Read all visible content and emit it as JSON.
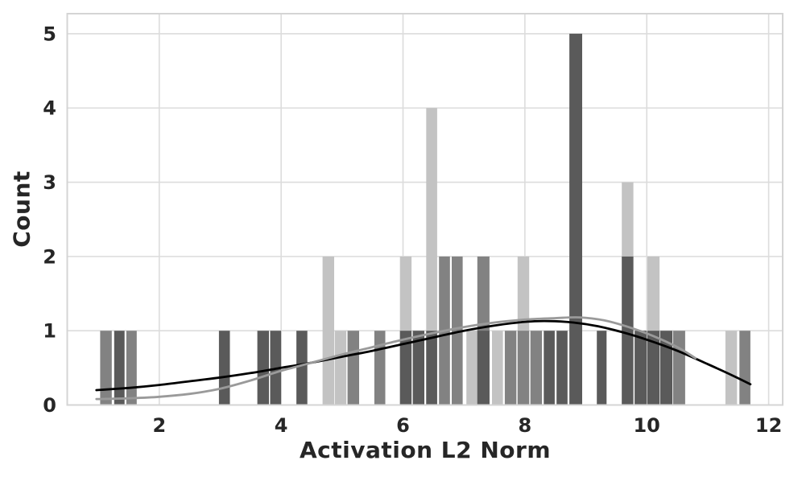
{
  "colors": {
    "background": "#ffffff",
    "grid": "#dcdcdc",
    "spine": "#d4d4d4",
    "tick_text": "#262626",
    "label_text": "#262626",
    "kde_black": "#000000",
    "kde_gray": "#9a9a9a",
    "bar_light": "#c3c3c3",
    "bar_medium": "#828282",
    "bar_dark": "#5a5a5a"
  },
  "chart_data": {
    "type": "bar",
    "subtype": "layered-histogram-with-kde",
    "title": "",
    "xlabel": "Activation L2 Norm",
    "ylabel": "Count",
    "xlim": [
      0.49,
      12.23
    ],
    "ylim": [
      0,
      5.27
    ],
    "x_ticks": [
      2,
      4,
      6,
      8,
      10,
      12
    ],
    "y_ticks": [
      0,
      1,
      2,
      3,
      4,
      5
    ],
    "grid": true,
    "legend": false,
    "shade_colors": {
      "light": "#c3c3c3",
      "medium": "#828282",
      "dark": "#5a5a5a"
    },
    "bars": [
      {
        "x1": 1.03,
        "x2": 1.22,
        "count": 1,
        "shade": "medium"
      },
      {
        "x1": 1.26,
        "x2": 1.43,
        "count": 1,
        "shade": "dark"
      },
      {
        "x1": 1.46,
        "x2": 1.63,
        "count": 1,
        "shade": "medium"
      },
      {
        "x1": 2.98,
        "x2": 3.16,
        "count": 1,
        "shade": "dark"
      },
      {
        "x1": 3.61,
        "x2": 3.8,
        "count": 1,
        "shade": "dark"
      },
      {
        "x1": 3.82,
        "x2": 4.0,
        "count": 1,
        "shade": "dark"
      },
      {
        "x1": 4.25,
        "x2": 4.43,
        "count": 1,
        "shade": "dark"
      },
      {
        "x1": 4.68,
        "x2": 4.87,
        "count": 2,
        "shade": "light"
      },
      {
        "x1": 4.88,
        "x2": 5.07,
        "count": 1,
        "shade": "light"
      },
      {
        "x1": 5.09,
        "x2": 5.28,
        "count": 1,
        "shade": "medium"
      },
      {
        "x1": 5.53,
        "x2": 5.71,
        "count": 1,
        "shade": "medium"
      },
      {
        "x1": 5.95,
        "x2": 6.14,
        "count": 2,
        "shade": "light"
      },
      {
        "x1": 5.95,
        "x2": 6.14,
        "count": 1,
        "shade": "dark"
      },
      {
        "x1": 6.16,
        "x2": 6.35,
        "count": 1,
        "shade": "dark"
      },
      {
        "x1": 6.38,
        "x2": 6.56,
        "count": 4,
        "shade": "light"
      },
      {
        "x1": 6.38,
        "x2": 6.56,
        "count": 1,
        "shade": "dark"
      },
      {
        "x1": 6.59,
        "x2": 6.77,
        "count": 2,
        "shade": "medium"
      },
      {
        "x1": 6.8,
        "x2": 6.98,
        "count": 2,
        "shade": "medium"
      },
      {
        "x1": 7.04,
        "x2": 7.22,
        "count": 1,
        "shade": "light"
      },
      {
        "x1": 7.22,
        "x2": 7.42,
        "count": 2,
        "shade": "medium"
      },
      {
        "x1": 7.22,
        "x2": 7.42,
        "count": 1,
        "shade": "dark"
      },
      {
        "x1": 7.46,
        "x2": 7.64,
        "count": 1,
        "shade": "light"
      },
      {
        "x1": 7.67,
        "x2": 7.86,
        "count": 1,
        "shade": "medium"
      },
      {
        "x1": 7.88,
        "x2": 8.07,
        "count": 2,
        "shade": "light"
      },
      {
        "x1": 7.88,
        "x2": 8.07,
        "count": 1,
        "shade": "medium"
      },
      {
        "x1": 8.09,
        "x2": 8.28,
        "count": 1,
        "shade": "medium"
      },
      {
        "x1": 8.31,
        "x2": 8.49,
        "count": 1,
        "shade": "dark"
      },
      {
        "x1": 8.52,
        "x2": 8.7,
        "count": 1,
        "shade": "dark"
      },
      {
        "x1": 8.73,
        "x2": 8.94,
        "count": 5,
        "shade": "dark"
      },
      {
        "x1": 9.18,
        "x2": 9.34,
        "count": 1,
        "shade": "dark"
      },
      {
        "x1": 9.59,
        "x2": 9.78,
        "count": 3,
        "shade": "light"
      },
      {
        "x1": 9.59,
        "x2": 9.78,
        "count": 2,
        "shade": "dark"
      },
      {
        "x1": 9.8,
        "x2": 10.0,
        "count": 1,
        "shade": "dark"
      },
      {
        "x1": 10.01,
        "x2": 10.21,
        "count": 2,
        "shade": "light"
      },
      {
        "x1": 10.01,
        "x2": 10.21,
        "count": 1,
        "shade": "dark"
      },
      {
        "x1": 10.22,
        "x2": 10.42,
        "count": 1,
        "shade": "dark"
      },
      {
        "x1": 10.43,
        "x2": 10.63,
        "count": 1,
        "shade": "medium"
      },
      {
        "x1": 11.29,
        "x2": 11.48,
        "count": 1,
        "shade": "light"
      },
      {
        "x1": 11.52,
        "x2": 11.7,
        "count": 1,
        "shade": "medium"
      }
    ],
    "kde_curves": [
      {
        "name": "kde-black",
        "color": "#000000",
        "points": [
          [
            0.97,
            0.2
          ],
          [
            1.5,
            0.23
          ],
          [
            2.0,
            0.27
          ],
          [
            2.5,
            0.32
          ],
          [
            3.0,
            0.37
          ],
          [
            3.5,
            0.43
          ],
          [
            4.0,
            0.5
          ],
          [
            4.5,
            0.57
          ],
          [
            5.0,
            0.65
          ],
          [
            5.5,
            0.73
          ],
          [
            6.0,
            0.82
          ],
          [
            6.5,
            0.91
          ],
          [
            7.0,
            1.0
          ],
          [
            7.5,
            1.07
          ],
          [
            8.0,
            1.12
          ],
          [
            8.4,
            1.13
          ],
          [
            8.8,
            1.11
          ],
          [
            9.2,
            1.06
          ],
          [
            9.6,
            0.98
          ],
          [
            10.0,
            0.88
          ],
          [
            10.5,
            0.73
          ],
          [
            11.0,
            0.55
          ],
          [
            11.4,
            0.4
          ],
          [
            11.7,
            0.28
          ]
        ]
      },
      {
        "name": "kde-gray",
        "color": "#9a9a9a",
        "points": [
          [
            0.97,
            0.08
          ],
          [
            1.5,
            0.09
          ],
          [
            2.0,
            0.11
          ],
          [
            2.5,
            0.15
          ],
          [
            3.0,
            0.22
          ],
          [
            3.5,
            0.33
          ],
          [
            4.0,
            0.46
          ],
          [
            4.5,
            0.57
          ],
          [
            5.0,
            0.68
          ],
          [
            5.5,
            0.78
          ],
          [
            6.0,
            0.88
          ],
          [
            6.5,
            0.97
          ],
          [
            7.0,
            1.05
          ],
          [
            7.5,
            1.11
          ],
          [
            8.0,
            1.15
          ],
          [
            8.5,
            1.17
          ],
          [
            8.9,
            1.18
          ],
          [
            9.3,
            1.14
          ],
          [
            9.7,
            1.05
          ],
          [
            10.1,
            0.93
          ],
          [
            10.5,
            0.78
          ],
          [
            10.8,
            0.63
          ]
        ]
      }
    ]
  }
}
